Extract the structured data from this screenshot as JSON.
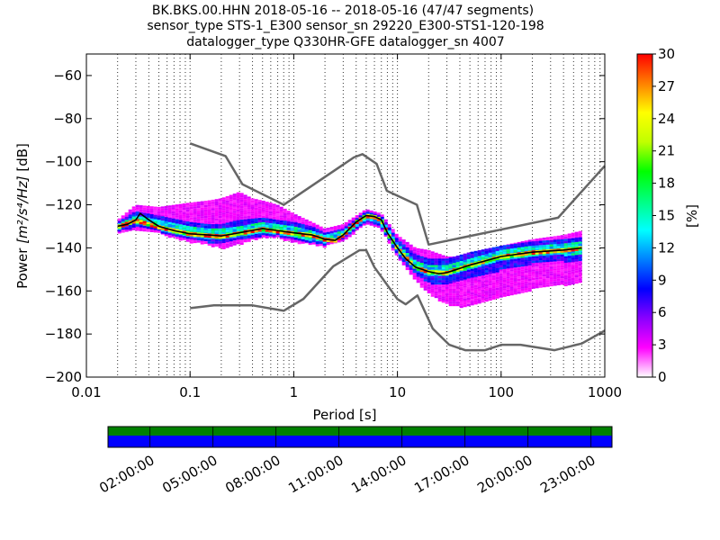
{
  "chart_data": {
    "type": "heatmap",
    "title_lines": [
      "BK.BKS.00.HHN   2018-05-16 -- 2018-05-16  (47/47 segments)",
      "sensor_type STS-1_E300 sensor_sn 29220_E300-STS1-120-198",
      "datalogger_type Q330HR-GFE datalogger_sn 4007"
    ],
    "xlabel": "Period [s]",
    "ylabel_prefix": "Power ",
    "ylabel_unit": "[m²/s⁴/Hz]",
    "ylabel_suffix": " [dB]",
    "x_scale": "log",
    "xlim": [
      0.01,
      1000
    ],
    "ylim": [
      -200,
      -50
    ],
    "x_ticks": [
      {
        "v": 0.01,
        "label": "0.01"
      },
      {
        "v": 0.1,
        "label": "0.1"
      },
      {
        "v": 1,
        "label": "1"
      },
      {
        "v": 10,
        "label": "10"
      },
      {
        "v": 100,
        "label": "100"
      },
      {
        "v": 1000,
        "label": "1000"
      }
    ],
    "y_ticks": [
      {
        "v": -60,
        "label": "−60"
      },
      {
        "v": -80,
        "label": "−80"
      },
      {
        "v": -100,
        "label": "−100"
      },
      {
        "v": -120,
        "label": "−120"
      },
      {
        "v": -140,
        "label": "−140"
      },
      {
        "v": -160,
        "label": "−160"
      },
      {
        "v": -180,
        "label": "−180"
      },
      {
        "v": -200,
        "label": "−200"
      }
    ],
    "grid": "dotted-vertical",
    "colorbar": {
      "label": "[%]",
      "range": [
        0,
        30
      ],
      "ticks": [
        {
          "v": 0,
          "label": "0"
        },
        {
          "v": 3,
          "label": "3"
        },
        {
          "v": 6,
          "label": "6"
        },
        {
          "v": 9,
          "label": "9"
        },
        {
          "v": 12,
          "label": "12"
        },
        {
          "v": 15,
          "label": "15"
        },
        {
          "v": 18,
          "label": "18"
        },
        {
          "v": 21,
          "label": "21"
        },
        {
          "v": 24,
          "label": "24"
        },
        {
          "v": 27,
          "label": "27"
        },
        {
          "v": 30,
          "label": "30"
        }
      ],
      "colors": [
        "#ffffff",
        "#ff00ff",
        "#8a00ff",
        "#0000ff",
        "#0080ff",
        "#00ffff",
        "#00ff80",
        "#00ff00",
        "#c0ff00",
        "#ffff00",
        "#ff8000",
        "#ff0000"
      ]
    },
    "noise_model_color": "#666666",
    "high_noise_model": [
      [
        0.1,
        -91.5
      ],
      [
        0.22,
        -97.4
      ],
      [
        0.32,
        -110.5
      ],
      [
        0.8,
        -120
      ],
      [
        3.8,
        -98
      ],
      [
        4.6,
        -96.5
      ],
      [
        6.3,
        -101
      ],
      [
        7.9,
        -113.5
      ],
      [
        15.4,
        -120
      ],
      [
        20,
        -138.5
      ],
      [
        354.8,
        -126
      ],
      [
        10000,
        -48.5
      ]
    ],
    "low_noise_model": [
      [
        0.1,
        -168
      ],
      [
        0.17,
        -166.7
      ],
      [
        0.4,
        -166.7
      ],
      [
        0.8,
        -169.2
      ],
      [
        1.24,
        -163.7
      ],
      [
        2.4,
        -148.6
      ],
      [
        4.3,
        -141.1
      ],
      [
        5,
        -141.1
      ],
      [
        6,
        -149
      ],
      [
        10,
        -163.8
      ],
      [
        12,
        -166.2
      ],
      [
        15.6,
        -162.1
      ],
      [
        21.9,
        -177.5
      ],
      [
        31.6,
        -185
      ],
      [
        45,
        -187.5
      ],
      [
        70,
        -187.5
      ],
      [
        101,
        -185
      ],
      [
        154,
        -185
      ],
      [
        328,
        -187.5
      ],
      [
        600,
        -184.4
      ],
      [
        10000,
        -151.5
      ]
    ],
    "mode_line_color": "#000000",
    "mode_line": [
      [
        0.02,
        -130
      ],
      [
        0.025,
        -129
      ],
      [
        0.03,
        -127
      ],
      [
        0.033,
        -124
      ],
      [
        0.04,
        -127
      ],
      [
        0.05,
        -130
      ],
      [
        0.07,
        -132
      ],
      [
        0.1,
        -133.5
      ],
      [
        0.15,
        -134
      ],
      [
        0.2,
        -134.5
      ],
      [
        0.3,
        -133
      ],
      [
        0.5,
        -131
      ],
      [
        0.7,
        -132
      ],
      [
        1,
        -133
      ],
      [
        1.5,
        -134
      ],
      [
        2,
        -136
      ],
      [
        2.5,
        -136.5
      ],
      [
        3,
        -134
      ],
      [
        4,
        -128
      ],
      [
        5,
        -125
      ],
      [
        6,
        -125.5
      ],
      [
        7,
        -127
      ],
      [
        8,
        -133
      ],
      [
        10,
        -140
      ],
      [
        12,
        -145
      ],
      [
        15,
        -149
      ],
      [
        20,
        -151
      ],
      [
        25,
        -152
      ],
      [
        30,
        -151.5
      ],
      [
        50,
        -148
      ],
      [
        100,
        -144
      ],
      [
        200,
        -142
      ],
      [
        400,
        -141
      ],
      [
        600,
        -140
      ]
    ],
    "psd_bands": [
      {
        "pct": 3,
        "points": [
          [
            0.02,
            -133,
            -127
          ],
          [
            0.03,
            -131,
            -120
          ],
          [
            0.05,
            -133,
            -121
          ],
          [
            0.1,
            -137,
            -119
          ],
          [
            0.15,
            -138,
            -118
          ],
          [
            0.2,
            -140,
            -117
          ],
          [
            0.3,
            -138,
            -114
          ],
          [
            0.4,
            -136,
            -117
          ],
          [
            0.5,
            -135,
            -118
          ],
          [
            0.7,
            -135,
            -120
          ],
          [
            1,
            -137,
            -124
          ],
          [
            1.5,
            -138,
            -128
          ],
          [
            2,
            -139,
            -131
          ],
          [
            3,
            -137,
            -129
          ],
          [
            5,
            -128,
            -122
          ],
          [
            7,
            -131,
            -124
          ],
          [
            10,
            -144,
            -134
          ],
          [
            15,
            -155,
            -140
          ],
          [
            20,
            -161,
            -141
          ],
          [
            30,
            -166,
            -144
          ],
          [
            40,
            -167,
            -144
          ],
          [
            60,
            -166,
            -142
          ],
          [
            100,
            -163,
            -139
          ],
          [
            200,
            -159,
            -136
          ],
          [
            400,
            -157,
            -134
          ],
          [
            600,
            -156,
            -132
          ]
        ]
      },
      {
        "pct": 8,
        "points": [
          [
            0.02,
            -132,
            -128
          ],
          [
            0.03,
            -130,
            -123
          ],
          [
            0.05,
            -132,
            -125
          ],
          [
            0.1,
            -136,
            -128
          ],
          [
            0.15,
            -137,
            -129
          ],
          [
            0.2,
            -138,
            -129
          ],
          [
            0.3,
            -136,
            -127
          ],
          [
            0.5,
            -134,
            -126
          ],
          [
            0.7,
            -134,
            -127
          ],
          [
            1,
            -136,
            -128
          ],
          [
            1.5,
            -137,
            -130
          ],
          [
            2,
            -138,
            -133
          ],
          [
            3,
            -136,
            -131
          ],
          [
            5,
            -127,
            -123
          ],
          [
            7,
            -130,
            -125
          ],
          [
            10,
            -143,
            -136
          ],
          [
            15,
            -152,
            -143
          ],
          [
            20,
            -156,
            -145
          ],
          [
            30,
            -157,
            -145
          ],
          [
            50,
            -154,
            -142
          ],
          [
            100,
            -150,
            -139
          ],
          [
            200,
            -147,
            -137
          ],
          [
            400,
            -146,
            -136
          ],
          [
            600,
            -146,
            -135
          ]
        ]
      },
      {
        "pct": 14,
        "points": [
          [
            0.02,
            -131,
            -129
          ],
          [
            0.03,
            -128,
            -125
          ],
          [
            0.05,
            -131,
            -127
          ],
          [
            0.1,
            -135,
            -130
          ],
          [
            0.15,
            -136,
            -131
          ],
          [
            0.2,
            -136,
            -131
          ],
          [
            0.3,
            -135,
            -130
          ],
          [
            0.5,
            -133,
            -128
          ],
          [
            0.7,
            -133,
            -129
          ],
          [
            1,
            -135,
            -130
          ],
          [
            1.5,
            -136,
            -132
          ],
          [
            2,
            -137,
            -134
          ],
          [
            3,
            -135,
            -132
          ],
          [
            5,
            -126,
            -124
          ],
          [
            7,
            -129,
            -126
          ],
          [
            10,
            -142,
            -138
          ],
          [
            15,
            -150,
            -146
          ],
          [
            20,
            -153,
            -148
          ],
          [
            30,
            -153,
            -148
          ],
          [
            50,
            -150,
            -145
          ],
          [
            100,
            -146,
            -141
          ],
          [
            200,
            -144,
            -139
          ],
          [
            400,
            -143,
            -138
          ],
          [
            600,
            -143,
            -137
          ]
        ]
      },
      {
        "pct": 25,
        "points": [
          [
            0.02,
            -130.6,
            -129.4
          ],
          [
            0.03,
            -127.6,
            -126.4
          ],
          [
            0.05,
            -130.6,
            -129.4
          ],
          [
            0.1,
            -134,
            -132.6
          ],
          [
            0.2,
            -135,
            -133.8
          ],
          [
            0.3,
            -133.7,
            -132.3
          ],
          [
            0.5,
            -131.7,
            -130.3
          ],
          [
            0.7,
            -132.7,
            -131.3
          ],
          [
            1,
            -133.7,
            -132.3
          ],
          [
            1.5,
            -134.8,
            -133.2
          ],
          [
            2,
            -136.8,
            -135.2
          ],
          [
            2.5,
            -137.3,
            -135.7
          ],
          [
            3,
            -134.8,
            -133.2
          ],
          [
            4,
            -128.8,
            -127.2
          ],
          [
            5,
            -125.8,
            -124.2
          ],
          [
            6,
            -126.3,
            -124.7
          ],
          [
            7,
            -127.8,
            -126.2
          ],
          [
            8,
            -133.8,
            -132.2
          ],
          [
            10,
            -140.8,
            -139.2
          ],
          [
            15,
            -149.8,
            -148.2
          ],
          [
            20,
            -151.8,
            -150.2
          ],
          [
            30,
            -152.3,
            -150.7
          ],
          [
            50,
            -148.8,
            -147.2
          ],
          [
            100,
            -144.8,
            -143.2
          ],
          [
            200,
            -142.8,
            -141.2
          ],
          [
            400,
            -141.8,
            -140.2
          ],
          [
            600,
            -140.8,
            -139.2
          ]
        ]
      }
    ]
  },
  "timeline": {
    "top_band_color": "#008000",
    "bottom_band_color": "#0000ff",
    "labels": [
      "02:00:00",
      "05:00:00",
      "08:00:00",
      "11:00:00",
      "14:00:00",
      "17:00:00",
      "20:00:00",
      "23:00:00"
    ]
  }
}
